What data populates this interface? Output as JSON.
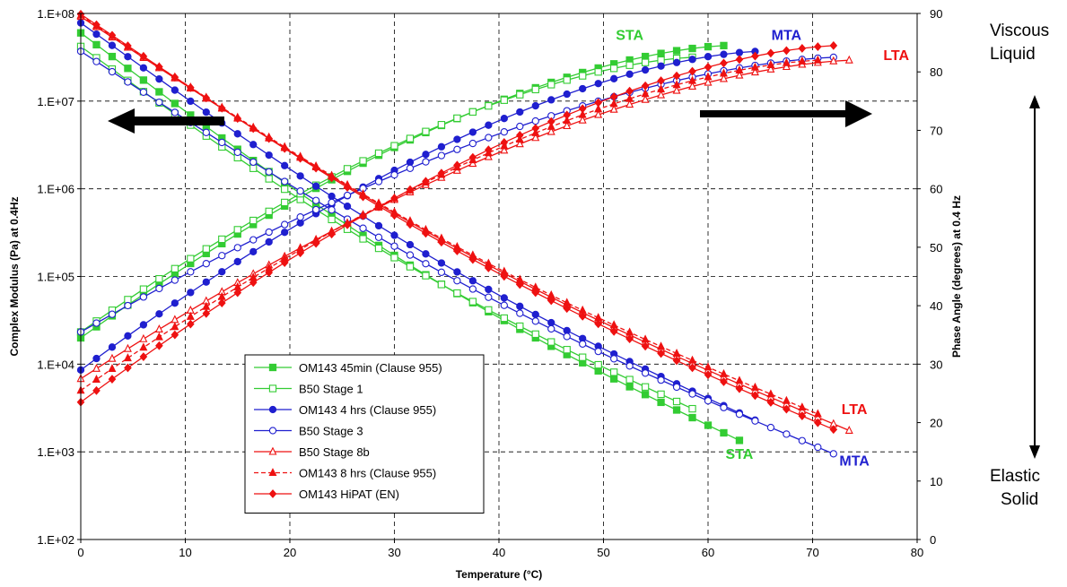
{
  "chart_data": {
    "type": "line",
    "xlabel": "Temperature (°C)",
    "ylabel": "Complex Modulus (Pa) at 0.4Hz",
    "y2label": "Phase Angle (degrees) at 0.4 Hz",
    "xlim": [
      0,
      80
    ],
    "xticks": [
      "0",
      "10",
      "20",
      "30",
      "40",
      "50",
      "60",
      "70",
      "80"
    ],
    "ylim": [
      100,
      100000000
    ],
    "yscale": "log",
    "yticks": [
      "1.E+02",
      "1.E+03",
      "1.E+04",
      "1.E+05",
      "1.E+06",
      "1.E+07",
      "1.E+08"
    ],
    "y2lim": [
      0,
      90
    ],
    "y2ticks": [
      "0",
      "10",
      "20",
      "30",
      "40",
      "50",
      "60",
      "70",
      "80",
      "90"
    ],
    "grid": true,
    "legend_position": "lower-left inside",
    "side_labels": {
      "top": [
        "Viscous",
        "Liquid"
      ],
      "bottom": [
        "Elastic",
        "Solid"
      ]
    },
    "annotations": [
      {
        "text": "STA",
        "color": "#33cc33",
        "x": 52.5,
        "y2": 85.5
      },
      {
        "text": "MTA",
        "color": "#1f1fcf",
        "x": 67.5,
        "y2": 85.5
      },
      {
        "text": "LTA",
        "color": "#ee1111",
        "x": 78,
        "y2": 82
      },
      {
        "text": "LTA",
        "color": "#ee1111",
        "x": 74,
        "y": 2700
      },
      {
        "text": "STA",
        "color": "#33cc33",
        "x": 63,
        "y": 830
      },
      {
        "text": "MTA",
        "color": "#1f1fcf",
        "x": 74,
        "y": 700
      }
    ],
    "arrows": [
      {
        "direction": "left",
        "axis": "primary"
      },
      {
        "direction": "right",
        "axis": "secondary"
      },
      {
        "direction": "vertical-double",
        "axis": "secondary"
      }
    ],
    "series": [
      {
        "name": "OM143 45min (Clause 955)",
        "color": "#33cc33",
        "marker": "square-filled",
        "dash": false,
        "modulus": {
          "x0": 0,
          "dx": 1.5,
          "n": 43,
          "y0": 60000000,
          "y1": 1350
        },
        "phase": {
          "x0": 0,
          "dx": 1.5,
          "n": 42,
          "y0": 34.5,
          "y1": 84.5
        }
      },
      {
        "name": "B50 Stage 1",
        "color": "#33cc33",
        "marker": "square-open",
        "dash": false,
        "modulus": {
          "x0": 0,
          "dx": 1.5,
          "n": 40,
          "y0": 42000000,
          "y1": 3100
        },
        "phase": {
          "x0": 0,
          "dx": 1.5,
          "n": 40,
          "y0": 35.5,
          "y1": 82.5
        }
      },
      {
        "name": "OM143 4 hrs (Clause 955)",
        "color": "#1f1fcf",
        "marker": "circle-filled",
        "dash": false,
        "modulus": {
          "x0": 0,
          "dx": 1.5,
          "n": 44,
          "y0": 78000000,
          "y1": 2300
        },
        "phase": {
          "x0": 0,
          "dx": 1.5,
          "n": 44,
          "y0": 29,
          "y1": 83.5
        }
      },
      {
        "name": "B50 Stage 3",
        "color": "#1f1fcf",
        "marker": "circle-open",
        "dash": false,
        "modulus": {
          "x0": 0,
          "dx": 1.5,
          "n": 49,
          "y0": 37000000,
          "y1": 950
        },
        "phase": {
          "x0": 0,
          "dx": 1.5,
          "n": 49,
          "y0": 35.5,
          "y1": 82.5
        }
      },
      {
        "name": "B50 Stage 8b",
        "color": "#ee1111",
        "marker": "triangle-open",
        "dash": false,
        "modulus": {
          "x0": 0,
          "dx": 1.5,
          "n": 50,
          "y0": 92000000,
          "y1": 1750
        },
        "phase": {
          "x0": 0,
          "dx": 1.5,
          "n": 50,
          "y0": 27.5,
          "y1": 82
        }
      },
      {
        "name": "OM143 8 hrs (Clause 955)",
        "color": "#ee1111",
        "marker": "triangle-filled",
        "dash": true,
        "modulus": {
          "x0": 0,
          "dx": 1.5,
          "n": 48,
          "y0": 95000000,
          "y1": 2700
        },
        "phase": {
          "x0": 0,
          "dx": 1.5,
          "n": 48,
          "y0": 25.5,
          "y1": 82
        }
      },
      {
        "name": "OM143 HiPAT (EN)",
        "color": "#ee1111",
        "marker": "diamond-filled",
        "dash": false,
        "modulus": {
          "x0": 0,
          "dx": 1.5,
          "n": 49,
          "y0": 98000000,
          "y1": 1800
        },
        "phase": {
          "x0": 0,
          "dx": 1.5,
          "n": 49,
          "y0": 23.5,
          "y1": 84.5
        }
      }
    ]
  }
}
